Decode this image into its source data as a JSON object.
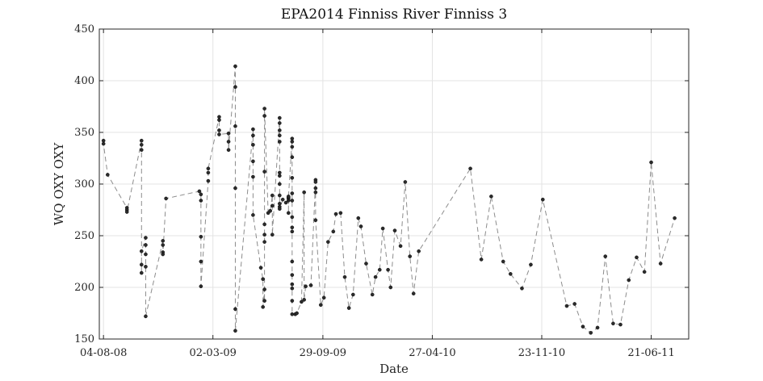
{
  "chart_data": {
    "type": "line",
    "title": "EPA2014 Finniss River Finniss 3",
    "xlabel": "Date",
    "ylabel": "WQ OXY OXY",
    "ylim": [
      150,
      450
    ],
    "xlim": [
      "2008-07-27",
      "2011-09-01"
    ],
    "grid": true,
    "line_style": "dashed",
    "colors": {
      "line": "#8c8c8c",
      "marker": "#2b2b2b",
      "grid": "#e3e3e3",
      "axis": "#262626"
    },
    "x_ticks": [
      {
        "date": "2008-08-04",
        "label": "04-08-08"
      },
      {
        "date": "2009-03-02",
        "label": "02-03-09"
      },
      {
        "date": "2009-09-29",
        "label": "29-09-09"
      },
      {
        "date": "2010-04-27",
        "label": "27-04-10"
      },
      {
        "date": "2010-11-23",
        "label": "23-11-10"
      },
      {
        "date": "2011-06-21",
        "label": "21-06-11"
      }
    ],
    "y_ticks": [
      150,
      200,
      250,
      300,
      350,
      400,
      450
    ],
    "series": [
      {
        "points": [
          [
            "2008-08-04",
            342
          ],
          [
            "2008-08-04",
            339
          ],
          [
            "2008-08-12",
            309
          ],
          [
            "2008-09-18",
            277
          ],
          [
            "2008-09-18",
            275
          ],
          [
            "2008-09-18",
            273
          ],
          [
            "2008-10-16",
            342
          ],
          [
            "2008-10-16",
            338
          ],
          [
            "2008-10-16",
            333
          ],
          [
            "2008-10-16",
            222
          ],
          [
            "2008-10-16",
            214
          ],
          [
            "2008-10-16",
            235
          ],
          [
            "2008-10-24",
            248
          ],
          [
            "2008-10-24",
            241
          ],
          [
            "2008-10-24",
            232
          ],
          [
            "2008-10-24",
            220
          ],
          [
            "2008-10-24",
            172
          ],
          [
            "2008-11-26",
            245
          ],
          [
            "2008-11-26",
            241
          ],
          [
            "2008-11-26",
            234
          ],
          [
            "2008-11-26",
            232
          ],
          [
            "2008-12-02",
            286
          ],
          [
            "2009-02-04",
            293
          ],
          [
            "2009-02-07",
            290
          ],
          [
            "2009-02-07",
            284
          ],
          [
            "2009-02-07",
            249
          ],
          [
            "2009-02-07",
            225
          ],
          [
            "2009-02-07",
            201
          ],
          [
            "2009-02-21",
            303
          ],
          [
            "2009-02-21",
            311
          ],
          [
            "2009-02-21",
            315
          ],
          [
            "2009-03-14",
            365
          ],
          [
            "2009-03-14",
            362
          ],
          [
            "2009-03-14",
            352
          ],
          [
            "2009-03-14",
            348
          ],
          [
            "2009-04-01",
            349
          ],
          [
            "2009-04-01",
            341
          ],
          [
            "2009-04-01",
            333
          ],
          [
            "2009-04-14",
            414
          ],
          [
            "2009-04-14",
            394
          ],
          [
            "2009-04-14",
            356
          ],
          [
            "2009-04-14",
            296
          ],
          [
            "2009-04-14",
            179
          ],
          [
            "2009-04-14",
            158
          ],
          [
            "2009-05-18",
            353
          ],
          [
            "2009-05-18",
            347
          ],
          [
            "2009-05-18",
            338
          ],
          [
            "2009-05-18",
            322
          ],
          [
            "2009-05-18",
            307
          ],
          [
            "2009-05-18",
            270
          ],
          [
            "2009-06-02",
            219
          ],
          [
            "2009-06-06",
            208
          ],
          [
            "2009-06-06",
            181
          ],
          [
            "2009-06-09",
            198
          ],
          [
            "2009-06-09",
            187
          ],
          [
            "2009-06-09",
            244
          ],
          [
            "2009-06-09",
            251
          ],
          [
            "2009-06-09",
            261
          ],
          [
            "2009-06-09",
            312
          ],
          [
            "2009-06-09",
            366
          ],
          [
            "2009-06-09",
            373
          ],
          [
            "2009-06-16",
            272
          ],
          [
            "2009-06-20",
            274
          ],
          [
            "2009-06-24",
            289
          ],
          [
            "2009-06-24",
            279
          ],
          [
            "2009-06-24",
            251
          ],
          [
            "2009-07-08",
            364
          ],
          [
            "2009-07-08",
            359
          ],
          [
            "2009-07-08",
            352
          ],
          [
            "2009-07-08",
            347
          ],
          [
            "2009-07-08",
            341
          ],
          [
            "2009-07-08",
            311
          ],
          [
            "2009-07-08",
            308
          ],
          [
            "2009-07-08",
            300
          ],
          [
            "2009-07-08",
            289
          ],
          [
            "2009-07-08",
            281
          ],
          [
            "2009-07-08",
            278
          ],
          [
            "2009-07-08",
            276
          ],
          [
            "2009-07-14",
            285
          ],
          [
            "2009-07-20",
            282
          ],
          [
            "2009-07-25",
            284
          ],
          [
            "2009-07-25",
            286
          ],
          [
            "2009-07-25",
            287
          ],
          [
            "2009-07-25",
            272
          ],
          [
            "2009-07-25",
            288
          ],
          [
            "2009-08-01",
            344
          ],
          [
            "2009-08-01",
            341
          ],
          [
            "2009-08-01",
            336
          ],
          [
            "2009-08-01",
            326
          ],
          [
            "2009-08-01",
            306
          ],
          [
            "2009-08-01",
            291
          ],
          [
            "2009-08-01",
            284
          ],
          [
            "2009-08-01",
            268
          ],
          [
            "2009-08-01",
            258
          ],
          [
            "2009-08-01",
            254
          ],
          [
            "2009-08-01",
            225
          ],
          [
            "2009-08-01",
            212
          ],
          [
            "2009-08-01",
            203
          ],
          [
            "2009-08-01",
            199
          ],
          [
            "2009-08-01",
            187
          ],
          [
            "2009-08-01",
            174
          ],
          [
            "2009-08-07",
            174
          ],
          [
            "2009-08-10",
            175
          ],
          [
            "2009-08-19",
            186
          ],
          [
            "2009-08-24",
            292
          ],
          [
            "2009-08-24",
            188
          ],
          [
            "2009-08-27",
            201
          ],
          [
            "2009-09-06",
            202
          ],
          [
            "2009-09-15",
            304
          ],
          [
            "2009-09-15",
            302
          ],
          [
            "2009-09-15",
            296
          ],
          [
            "2009-09-15",
            292
          ],
          [
            "2009-09-15",
            265
          ],
          [
            "2009-09-25",
            183
          ],
          [
            "2009-10-01",
            190
          ],
          [
            "2009-10-09",
            244
          ],
          [
            "2009-10-19",
            254
          ],
          [
            "2009-10-24",
            271
          ],
          [
            "2009-11-02",
            272
          ],
          [
            "2009-11-10",
            210
          ],
          [
            "2009-11-18",
            180
          ],
          [
            "2009-11-26",
            193
          ],
          [
            "2009-12-06",
            267
          ],
          [
            "2009-12-11",
            259
          ],
          [
            "2009-12-21",
            223
          ],
          [
            "2010-01-02",
            193
          ],
          [
            "2010-01-08",
            210
          ],
          [
            "2010-01-16",
            217
          ],
          [
            "2010-01-22",
            257
          ],
          [
            "2010-02-01",
            217
          ],
          [
            "2010-02-06",
            200
          ],
          [
            "2010-02-14",
            255
          ],
          [
            "2010-02-25",
            240
          ],
          [
            "2010-03-06",
            302
          ],
          [
            "2010-03-15",
            230
          ],
          [
            "2010-03-22",
            194
          ],
          [
            "2010-04-01",
            235
          ],
          [
            "2010-07-09",
            315
          ],
          [
            "2010-07-30",
            227
          ],
          [
            "2010-08-18",
            288
          ],
          [
            "2010-09-10",
            225
          ],
          [
            "2010-09-24",
            213
          ],
          [
            "2010-10-16",
            199
          ],
          [
            "2010-11-02",
            222
          ],
          [
            "2010-11-25",
            285
          ],
          [
            "2011-01-10",
            182
          ],
          [
            "2011-01-25",
            184
          ],
          [
            "2011-02-10",
            162
          ],
          [
            "2011-02-25",
            156
          ],
          [
            "2011-03-10",
            161
          ],
          [
            "2011-03-25",
            230
          ],
          [
            "2011-04-09",
            165
          ],
          [
            "2011-04-23",
            164
          ],
          [
            "2011-05-09",
            207
          ],
          [
            "2011-05-24",
            229
          ],
          [
            "2011-06-08",
            215
          ],
          [
            "2011-06-21",
            321
          ],
          [
            "2011-07-09",
            223
          ],
          [
            "2011-08-05",
            267
          ]
        ]
      }
    ]
  }
}
